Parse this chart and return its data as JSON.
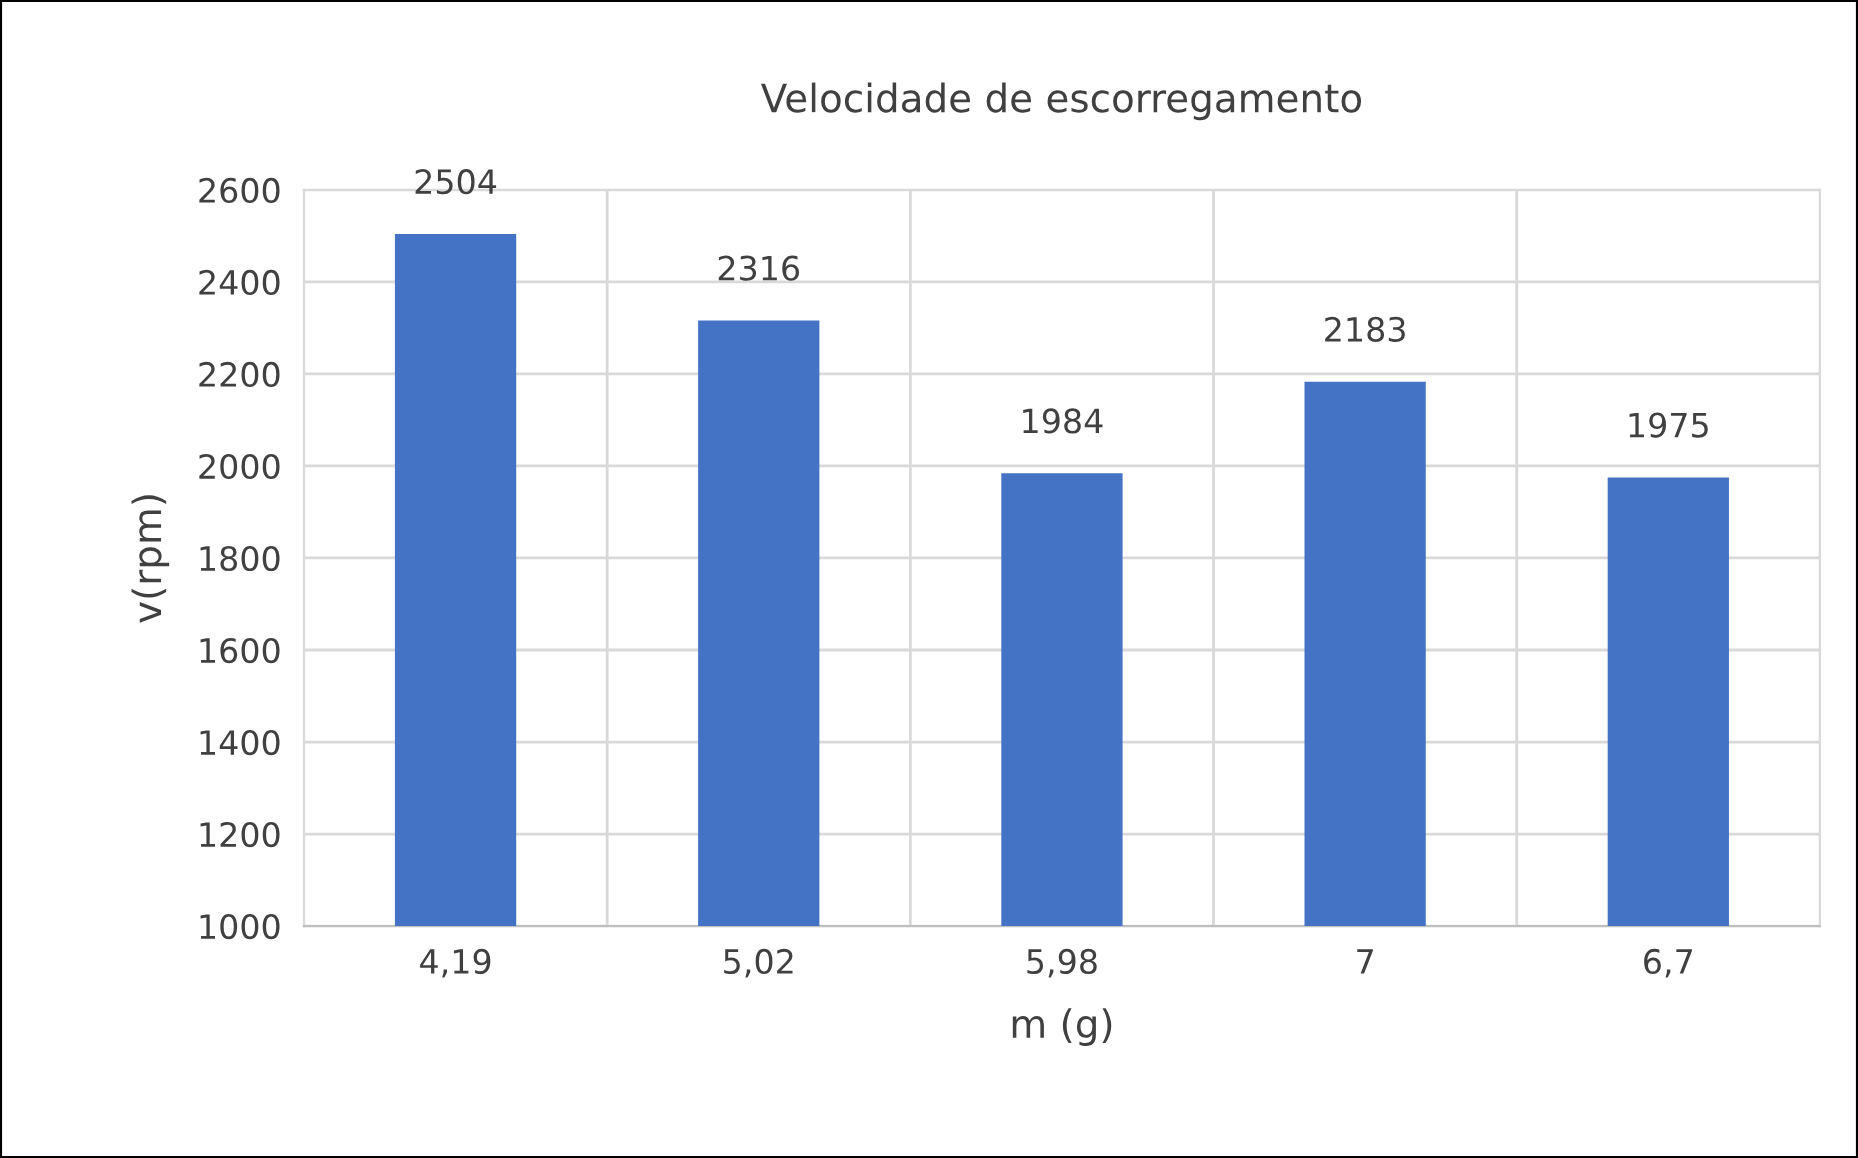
{
  "chart_data": {
    "type": "bar",
    "title": "Velocidade de escorregamento",
    "xlabel": "m (g)",
    "ylabel": "v(rpm)",
    "categories": [
      "4,19",
      "5,02",
      "5,98",
      "7",
      "6,7"
    ],
    "values": [
      2504,
      2316,
      1984,
      2183,
      1975
    ],
    "color": "#4472c4",
    "ylim": [
      1000,
      2600
    ],
    "yticks": [
      1000,
      1200,
      1400,
      1600,
      1800,
      2000,
      2200,
      2400,
      2600
    ],
    "grid": true,
    "data_labels": true
  }
}
